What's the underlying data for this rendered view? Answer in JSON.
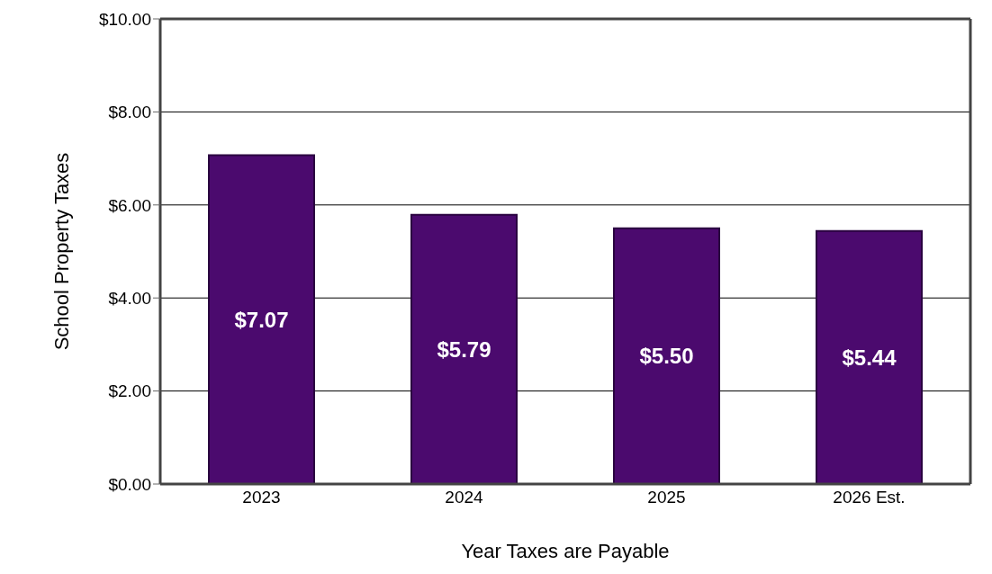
{
  "chart_data": {
    "type": "bar",
    "xlabel": "Year Taxes are Payable",
    "ylabel": "School Property Taxes",
    "categories": [
      "2023",
      "2024",
      "2025",
      "2026 Est."
    ],
    "values": [
      7.07,
      5.79,
      5.5,
      5.44
    ],
    "value_labels": [
      "$7.07",
      "$5.79",
      "$5.50",
      "$5.44"
    ],
    "color": "#4b0a6e",
    "ylim": [
      0,
      10
    ],
    "yticks": [
      {
        "value": 0,
        "label": "$0.00"
      },
      {
        "value": 2,
        "label": "$2.00"
      },
      {
        "value": 4,
        "label": "$4.00"
      },
      {
        "value": 6,
        "label": "$6.00"
      },
      {
        "value": 8,
        "label": "$8.00"
      },
      {
        "value": 10,
        "label": "$10.00"
      }
    ],
    "grid": "y",
    "legend": false
  }
}
